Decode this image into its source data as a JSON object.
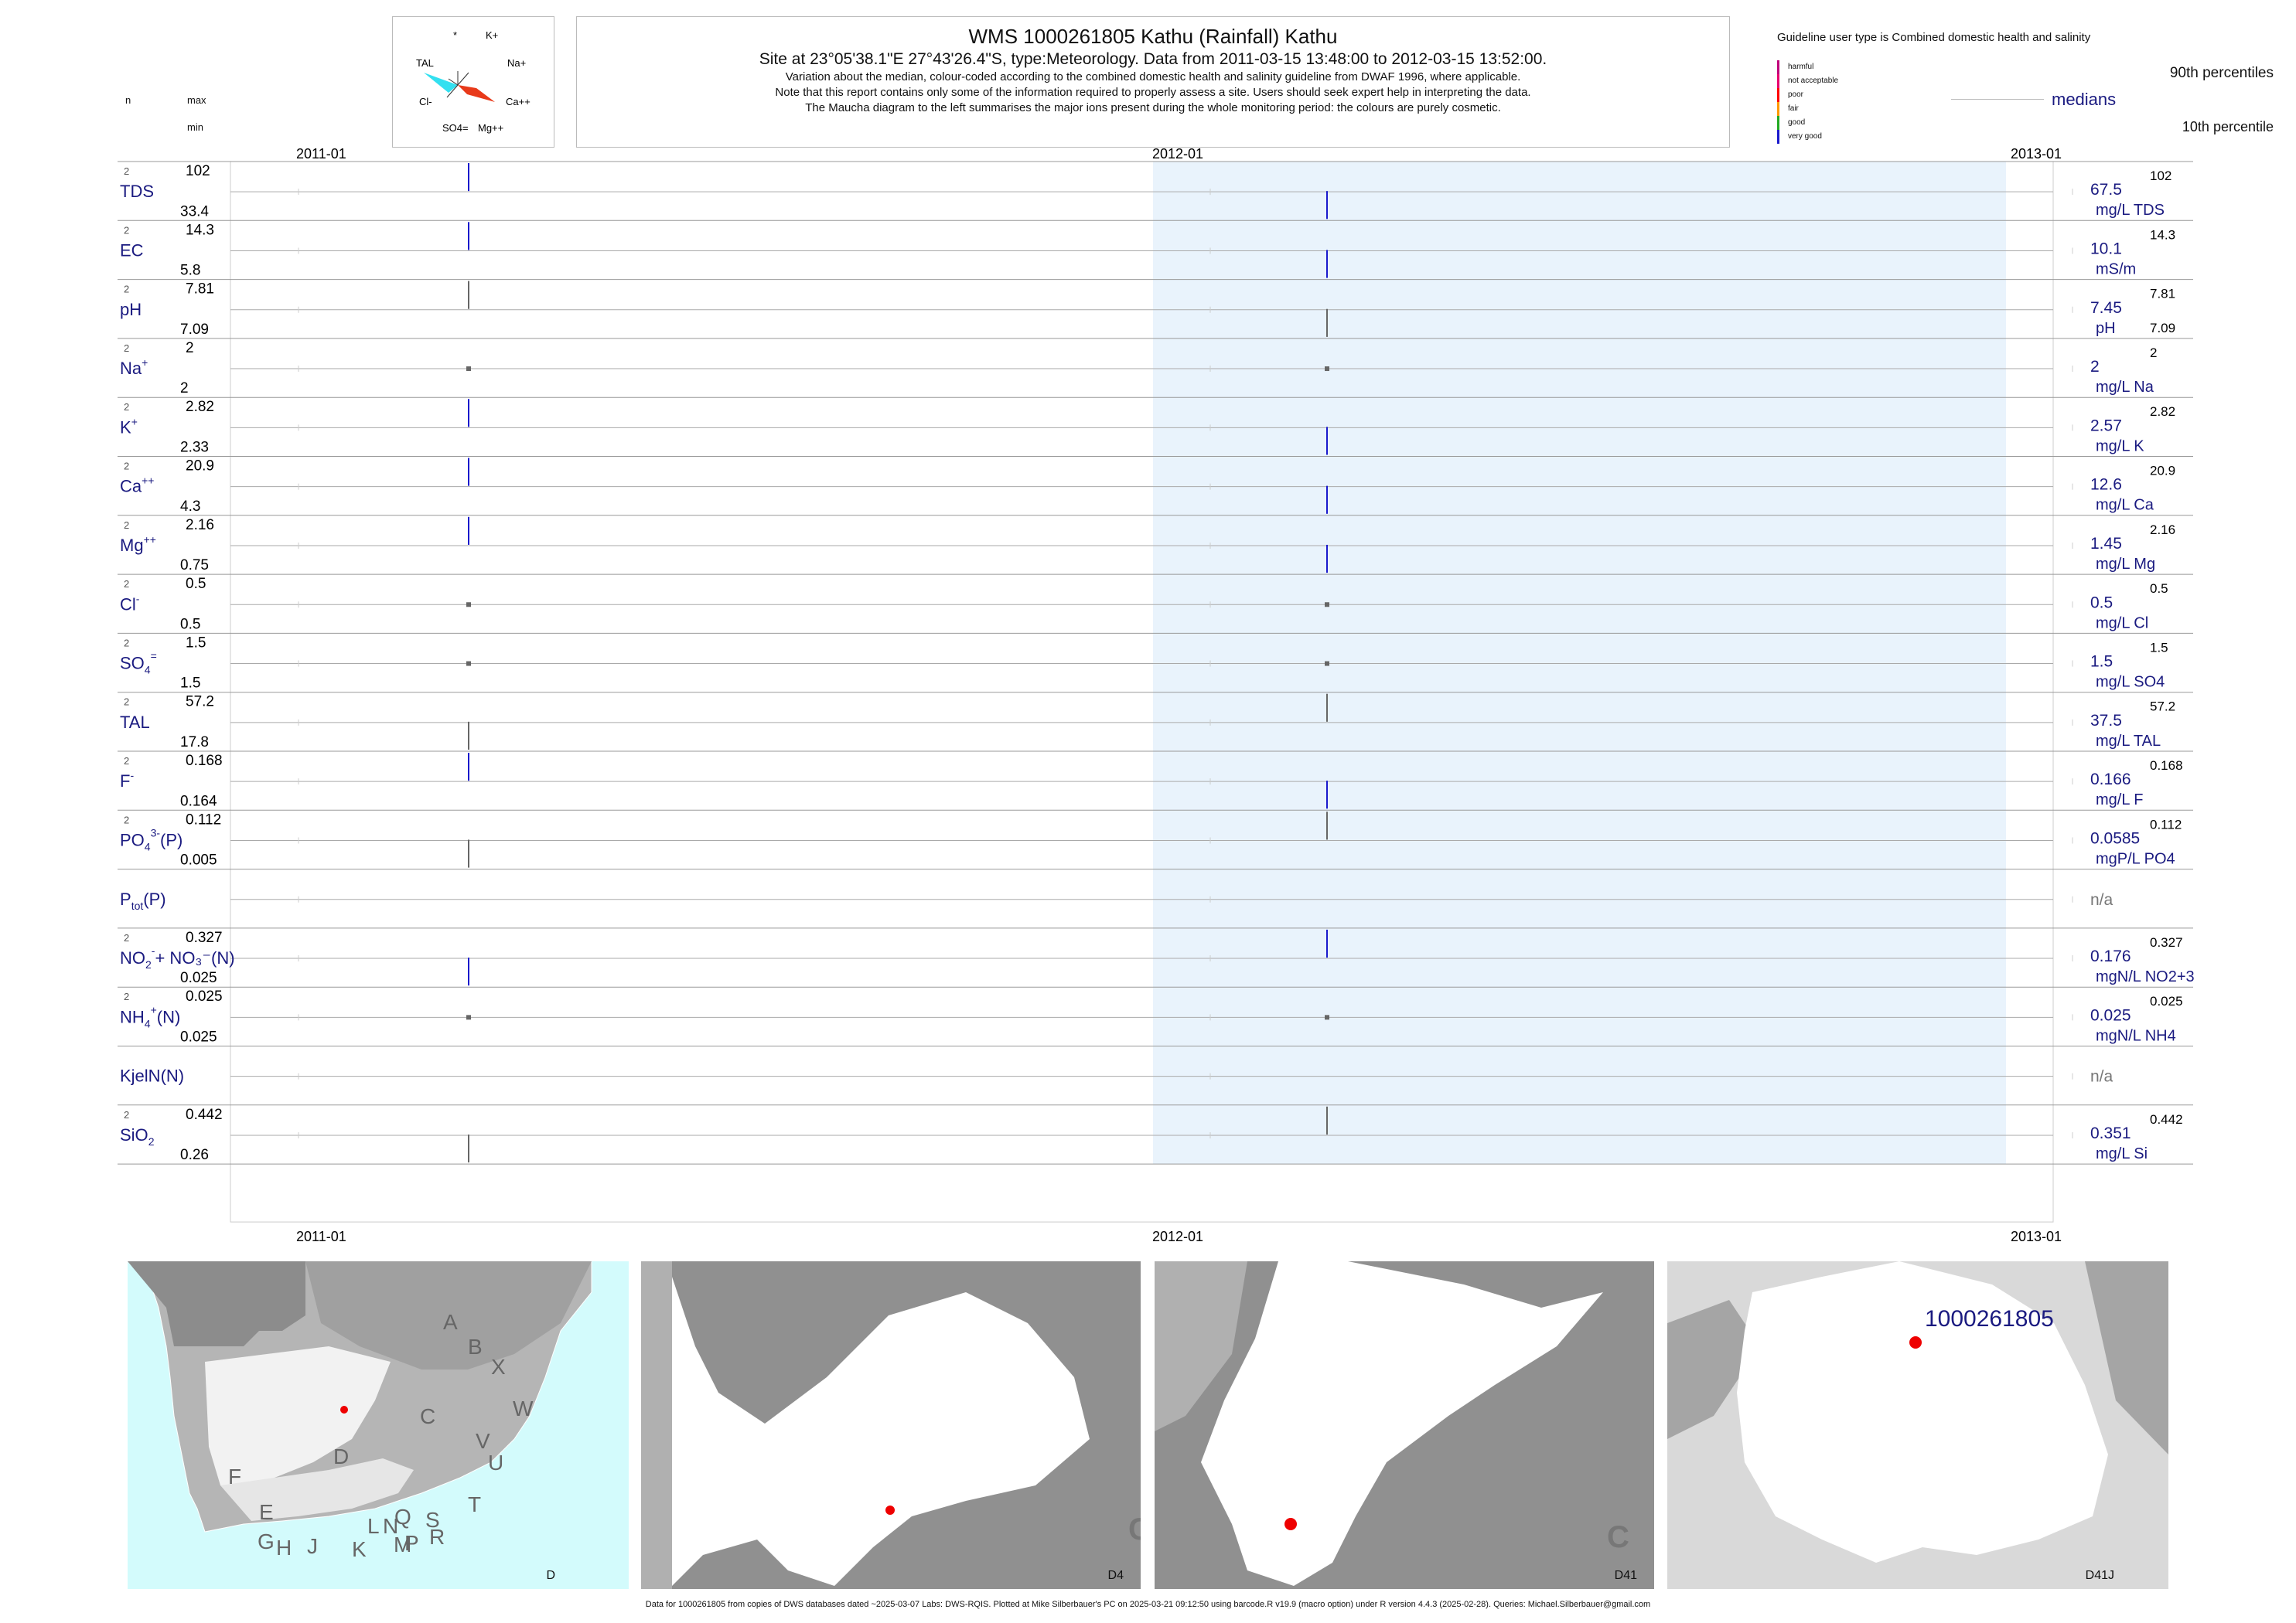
{
  "header": {
    "title": "WMS 1000261805  Kathu (Rainfall) Kathu",
    "site_line": "Site at 23°05'38.1\"E 27°43'26.4\"S, type:Meteorology.  Data from 2011-03-15 13:48:00 to 2012-03-15 13:52:00.",
    "note1": "Variation about the median,  colour-coded according to the combined domestic health and salinity guideline from DWAF 1996, where applicable.",
    "note2": "Note that this report contains only some of the information required to properly assess a site. Users should seek expert help in interpreting the data.",
    "note3": "The Maucha diagram to the left summarises the major ions present during the whole monitoring period: the colours are purely cosmetic."
  },
  "maucha": {
    "labels": [
      "*",
      "K+",
      "TAL",
      "Na+",
      "Cl-",
      "Ca++",
      "SO4=",
      "Mg++"
    ]
  },
  "legend": {
    "title": "Guideline user type is Combined domestic health and salinity",
    "classes": [
      {
        "label": "harmful",
        "color": "#c0007a"
      },
      {
        "label": "not acceptable",
        "color": "#e8006e"
      },
      {
        "label": "poor",
        "color": "#ff0000"
      },
      {
        "label": "fair",
        "color": "#ff9900"
      },
      {
        "label": "good",
        "color": "#22aa22"
      },
      {
        "label": "very good",
        "color": "#1a1acc"
      }
    ],
    "p90": "90th percentiles",
    "median": "medians",
    "p10": "10th percentile"
  },
  "left_header": {
    "n": "n",
    "max": "max",
    "min": "min"
  },
  "axis": {
    "ticks": [
      "2011-01",
      "2012-01",
      "2013-01"
    ]
  },
  "chart_data": {
    "type": "range-strip",
    "x_axis": {
      "ticks": [
        "2011-01",
        "2012-01",
        "2013-01"
      ]
    },
    "samples": [
      "2011-03-15 13:48:00",
      "2012-03-15 13:52:00"
    ],
    "rows": [
      {
        "label": "TDS",
        "sup": "",
        "sub": "",
        "n": "2",
        "max": "102",
        "min": "33.4",
        "median": "67.5",
        "p90": "102",
        "p10": "",
        "unit": "mg/L TDS",
        "c1": "#1a1acc",
        "c2": "#1a1acc",
        "kind": "range",
        "lo1": 0.5,
        "hi1": 1.0,
        "lo2": 0.0,
        "hi2": 0.5
      },
      {
        "label": "EC",
        "sup": "",
        "sub": "",
        "n": "2",
        "max": "14.3",
        "min": "5.8",
        "median": "10.1",
        "p90": "14.3",
        "p10": "",
        "unit": "mS/m",
        "c1": "#1a1acc",
        "c2": "#1a1acc",
        "kind": "range",
        "lo1": 0.5,
        "hi1": 1.0,
        "lo2": 0.0,
        "hi2": 0.5
      },
      {
        "label": "pH",
        "sup": "",
        "sub": "",
        "n": "2",
        "max": "7.81",
        "min": "7.09",
        "median": "7.45",
        "p90": "7.81",
        "p10": "7.09",
        "unit": "pH",
        "c1": "#666666",
        "c2": "#666666",
        "kind": "range",
        "lo1": 0.5,
        "hi1": 1.0,
        "lo2": 0.0,
        "hi2": 0.5
      },
      {
        "label": "Na",
        "sup": "+",
        "sub": "",
        "n": "2",
        "max": "2",
        "min": "2",
        "median": "2",
        "p90": "2",
        "p10": "",
        "unit": "mg/L Na",
        "c1": "#666666",
        "c2": "#666666",
        "kind": "dot"
      },
      {
        "label": "K",
        "sup": "+",
        "sub": "",
        "n": "2",
        "max": "2.82",
        "min": "2.33",
        "median": "2.57",
        "p90": "2.82",
        "p10": "",
        "unit": "mg/L K",
        "c1": "#1a1acc",
        "c2": "#1a1acc",
        "kind": "range",
        "lo1": 0.5,
        "hi1": 1.0,
        "lo2": 0.0,
        "hi2": 0.5
      },
      {
        "label": "Ca",
        "sup": "++",
        "sub": "",
        "n": "2",
        "max": "20.9",
        "min": "4.3",
        "median": "12.6",
        "p90": "20.9",
        "p10": "",
        "unit": "mg/L Ca",
        "c1": "#1a1acc",
        "c2": "#1a1acc",
        "kind": "range",
        "lo1": 0.5,
        "hi1": 1.0,
        "lo2": 0.0,
        "hi2": 0.5
      },
      {
        "label": "Mg",
        "sup": "++",
        "sub": "",
        "n": "2",
        "max": "2.16",
        "min": "0.75",
        "median": "1.45",
        "p90": "2.16",
        "p10": "",
        "unit": "mg/L Mg",
        "c1": "#1a1acc",
        "c2": "#1a1acc",
        "kind": "range",
        "lo1": 0.5,
        "hi1": 1.0,
        "lo2": 0.0,
        "hi2": 0.5
      },
      {
        "label": "Cl",
        "sup": "-",
        "sub": "",
        "n": "2",
        "max": "0.5",
        "min": "0.5",
        "median": "0.5",
        "p90": "0.5",
        "p10": "",
        "unit": "mg/L Cl",
        "c1": "#666666",
        "c2": "#666666",
        "kind": "dot"
      },
      {
        "label": "SO",
        "sup": "=",
        "sub": "4",
        "n": "2",
        "max": "1.5",
        "min": "1.5",
        "median": "1.5",
        "p90": "1.5",
        "p10": "",
        "unit": "mg/L SO4",
        "c1": "#666666",
        "c2": "#666666",
        "kind": "dot"
      },
      {
        "label": "TAL",
        "sup": "",
        "sub": "",
        "n": "2",
        "max": "57.2",
        "min": "17.8",
        "median": "37.5",
        "p90": "57.2",
        "p10": "",
        "unit": "mg/L TAL",
        "c1": "#666666",
        "c2": "#666666",
        "kind": "range",
        "lo1": 0.0,
        "hi1": 0.5,
        "lo2": 0.5,
        "hi2": 1.0
      },
      {
        "label": "F",
        "sup": "-",
        "sub": "",
        "n": "2",
        "max": "0.168",
        "min": "0.164",
        "median": "0.166",
        "p90": "0.168",
        "p10": "",
        "unit": "mg/L F",
        "c1": "#1a1acc",
        "c2": "#1a1acc",
        "kind": "range",
        "lo1": 0.5,
        "hi1": 1.0,
        "lo2": 0.0,
        "hi2": 0.5
      },
      {
        "label": "PO",
        "sup": "3-",
        "sub": "4",
        "suffix": "(P)",
        "n": "2",
        "max": "0.112",
        "min": "0.005",
        "median": "0.0585",
        "p90": "0.112",
        "p10": "",
        "unit": "mgP/L PO4",
        "c1": "#666666",
        "c2": "#666666",
        "kind": "range",
        "lo1": 0.0,
        "hi1": 0.5,
        "lo2": 0.5,
        "hi2": 1.0
      },
      {
        "label": "P",
        "sup": "",
        "sub": "tot",
        "suffix": "(P)",
        "n": "",
        "max": "",
        "min": "",
        "median": "n/a",
        "p90": "",
        "p10": "",
        "unit": "",
        "kind": "none"
      },
      {
        "label": "NO",
        "sup": "-",
        "sub": "2",
        "suffix": "+ NO₃⁻(N)",
        "n": "2",
        "max": "0.327",
        "min": "0.025",
        "median": "0.176",
        "p90": "0.327",
        "p10": "",
        "unit": "mgN/L NO2+3",
        "c1": "#1a1acc",
        "c2": "#1a1acc",
        "kind": "range",
        "lo1": 0.0,
        "hi1": 0.5,
        "lo2": 0.5,
        "hi2": 1.0
      },
      {
        "label": "NH",
        "sup": "+",
        "sub": "4",
        "suffix": "(N)",
        "n": "2",
        "max": "0.025",
        "min": "0.025",
        "median": "0.025",
        "p90": "0.025",
        "p10": "",
        "unit": "mgN/L NH4",
        "c1": "#666666",
        "c2": "#666666",
        "kind": "dot"
      },
      {
        "label": "KjelN(N)",
        "sup": "",
        "sub": "",
        "n": "",
        "max": "",
        "min": "",
        "median": "n/a",
        "p90": "",
        "p10": "",
        "unit": "",
        "kind": "none"
      },
      {
        "label": "SiO",
        "sup": "",
        "sub": "2",
        "n": "2",
        "max": "0.442",
        "min": "0.26",
        "median": "0.351",
        "p90": "0.442",
        "p10": "",
        "unit": "mg/L Si",
        "c1": "#666666",
        "c2": "#666666",
        "kind": "range",
        "lo1": 0.0,
        "hi1": 0.5,
        "lo2": 0.5,
        "hi2": 1.0
      }
    ]
  },
  "maps": {
    "panel1_label": "D",
    "panel2_label": "D4",
    "panel3_label": "D41",
    "panel4_label": "D41J",
    "site_label": "1000261805",
    "region_letters": [
      "A",
      "B",
      "X",
      "W",
      "C",
      "V",
      "U",
      "T",
      "D",
      "F",
      "E",
      "G",
      "H",
      "J",
      "K",
      "L",
      "M",
      "N",
      "P",
      "Q",
      "R",
      "S"
    ]
  },
  "footer": "Data for 1000261805 from copies of DWS databases dated ~2025-03-07 Labs: DWS-RQIS. Plotted at Mike Silberbauer's PC on 2025-03-21 09:12:50 using barcode.R v19.9 (macro option) under R version 4.4.3 (2025-02-28). Queries: Michael.Silberbauer@gmail.com"
}
